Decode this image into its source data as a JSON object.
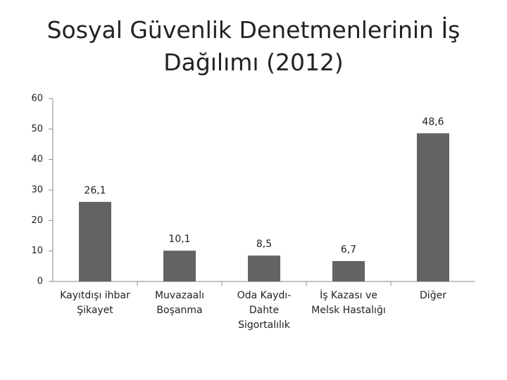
{
  "chart_data": {
    "type": "bar",
    "title": "Sosyal Güvenlik Denetmenlerinin İş Dağılımı (2012)",
    "categories": [
      "Kayıtdışı ihbar Şikayet",
      "Muvazaalı Boşanma",
      "Oda Kaydı-Dahte Sigortalılık",
      "İş Kazası ve Melsk Hastalığı",
      "Diğer"
    ],
    "values": [
      26.1,
      10.1,
      8.5,
      6.7,
      48.6
    ],
    "value_labels": [
      "26,1",
      "10,1",
      "8,5",
      "6,7",
      "48,6"
    ],
    "color": "#636363",
    "ylim": [
      0,
      60
    ],
    "yticks": [
      0,
      10,
      20,
      30,
      40,
      50,
      60
    ],
    "grid": false
  }
}
